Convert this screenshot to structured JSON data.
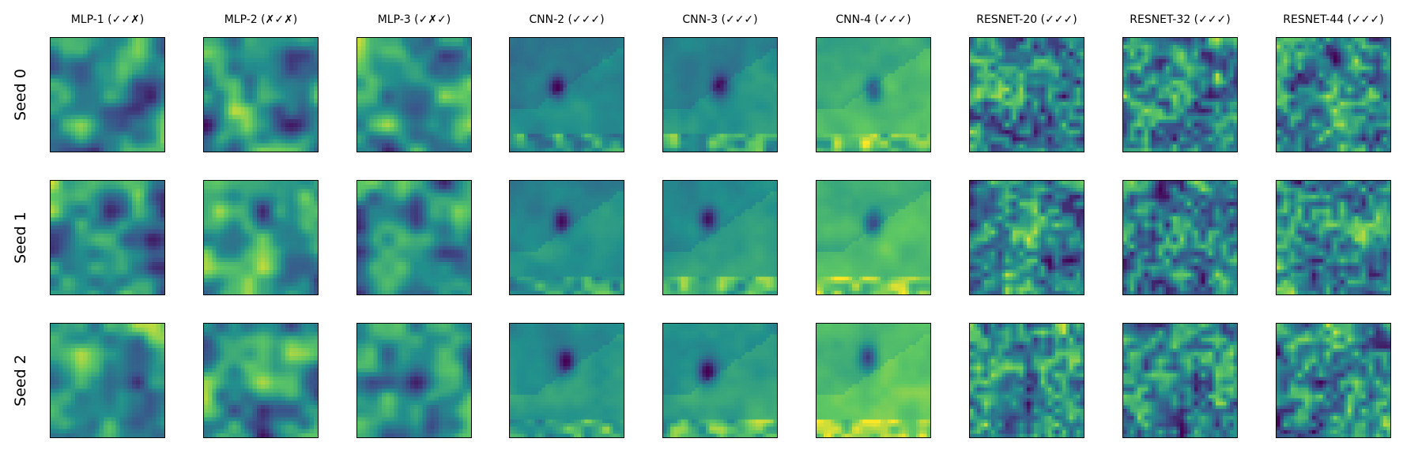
{
  "figure": {
    "columns": [
      {
        "label": "MLP-1 (✓✓✗)",
        "family": "mlp"
      },
      {
        "label": "MLP-2 (✗✓✗)",
        "family": "mlp"
      },
      {
        "label": "MLP-3 (✓✗✓)",
        "family": "mlp"
      },
      {
        "label": "CNN-2 (✓✓✓)",
        "family": "cnn"
      },
      {
        "label": "CNN-3 (✓✓✓)",
        "family": "cnn"
      },
      {
        "label": "CNN-4 (✓✓✓)",
        "family": "cnn"
      },
      {
        "label": "RESNET-20 (✓✓✓)",
        "family": "resnet"
      },
      {
        "label": "RESNET-32 (✓✓✓)",
        "family": "resnet"
      },
      {
        "label": "RESNET-44 (✓✓✓)",
        "family": "resnet"
      }
    ],
    "rows": [
      {
        "label": "Seed 0"
      },
      {
        "label": "Seed 1"
      },
      {
        "label": "Seed 2"
      }
    ],
    "colormap": [
      "#440154",
      "#3b528b",
      "#21908d",
      "#5dc863",
      "#fde725"
    ]
  }
}
